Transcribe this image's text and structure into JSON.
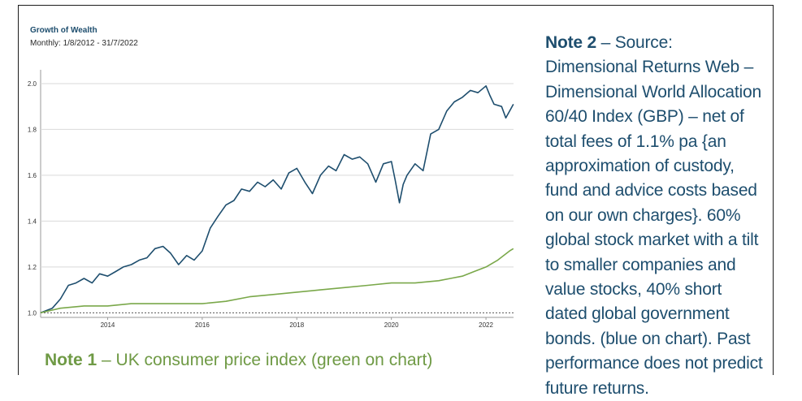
{
  "header": {
    "title": "Growth of Wealth",
    "subtitle": "Monthly: 1/8/2012 - 31/7/2022"
  },
  "notes": {
    "note1_label": "Note 1",
    "note1_text": " – UK consumer price index (green on chart)",
    "note2_label": "Note 2",
    "note2_text": " – Source: Dimensional Returns Web – Dimensional World Allocation 60/40 Index (GBP) – net of total fees of 1.1% pa {an approximation of custody, fund and advice costs based on our own charges}. 60% global stock market with a tilt to smaller companies and value stocks, 40% short dated global government bonds. (blue on chart). Past performance does not predict future returns."
  },
  "colors": {
    "blue_series": "#1e4e6e",
    "green_series": "#7aa84a",
    "grid": "#d9d9d9",
    "baseline": "#555555"
  },
  "chart_data": {
    "type": "line",
    "title": "Growth of Wealth",
    "subtitle": "Monthly: 1/8/2012 - 31/7/2022",
    "xlim": [
      2012.583,
      2022.583
    ],
    "ylim": [
      0.98,
      2.06
    ],
    "yticks": [
      "1.0",
      "1.2",
      "1.4",
      "1.6",
      "1.8",
      "2.0"
    ],
    "xticks": [
      "2014",
      "2016",
      "2018",
      "2020",
      "2022"
    ],
    "grid": true,
    "baseline": 1.0,
    "series": [
      {
        "color": "blue",
        "x": [
          2012.58,
          2012.83,
          2013.0,
          2013.17,
          2013.33,
          2013.5,
          2013.67,
          2013.83,
          2014.0,
          2014.17,
          2014.33,
          2014.5,
          2014.67,
          2014.83,
          2015.0,
          2015.17,
          2015.33,
          2015.5,
          2015.67,
          2015.83,
          2016.0,
          2016.17,
          2016.33,
          2016.5,
          2016.67,
          2016.83,
          2017.0,
          2017.17,
          2017.33,
          2017.5,
          2017.67,
          2017.83,
          2018.0,
          2018.17,
          2018.33,
          2018.5,
          2018.67,
          2018.83,
          2019.0,
          2019.17,
          2019.33,
          2019.5,
          2019.67,
          2019.83,
          2020.0,
          2020.08,
          2020.17,
          2020.25,
          2020.33,
          2020.5,
          2020.67,
          2020.83,
          2021.0,
          2021.17,
          2021.33,
          2021.5,
          2021.67,
          2021.83,
          2022.0,
          2022.08,
          2022.17,
          2022.33,
          2022.42,
          2022.5,
          2022.58
        ],
        "values": [
          1.0,
          1.02,
          1.06,
          1.12,
          1.13,
          1.15,
          1.13,
          1.17,
          1.16,
          1.18,
          1.2,
          1.21,
          1.23,
          1.24,
          1.28,
          1.29,
          1.26,
          1.21,
          1.25,
          1.23,
          1.27,
          1.37,
          1.42,
          1.47,
          1.49,
          1.54,
          1.53,
          1.57,
          1.55,
          1.58,
          1.54,
          1.61,
          1.63,
          1.57,
          1.52,
          1.6,
          1.64,
          1.62,
          1.69,
          1.67,
          1.68,
          1.65,
          1.57,
          1.65,
          1.66,
          1.58,
          1.48,
          1.56,
          1.6,
          1.65,
          1.62,
          1.78,
          1.8,
          1.88,
          1.92,
          1.94,
          1.97,
          1.96,
          1.99,
          1.95,
          1.91,
          1.9,
          1.85,
          1.88,
          1.91
        ]
      },
      {
        "color": "green",
        "x": [
          2012.58,
          2013.0,
          2013.5,
          2014.0,
          2014.5,
          2015.0,
          2015.5,
          2016.0,
          2016.5,
          2017.0,
          2017.5,
          2018.0,
          2018.5,
          2019.0,
          2019.5,
          2020.0,
          2020.5,
          2021.0,
          2021.25,
          2021.5,
          2021.75,
          2022.0,
          2022.25,
          2022.5,
          2022.58
        ],
        "values": [
          1.0,
          1.02,
          1.03,
          1.03,
          1.04,
          1.04,
          1.04,
          1.04,
          1.05,
          1.07,
          1.08,
          1.09,
          1.1,
          1.11,
          1.12,
          1.13,
          1.13,
          1.14,
          1.15,
          1.16,
          1.18,
          1.2,
          1.23,
          1.27,
          1.28
        ]
      }
    ]
  }
}
